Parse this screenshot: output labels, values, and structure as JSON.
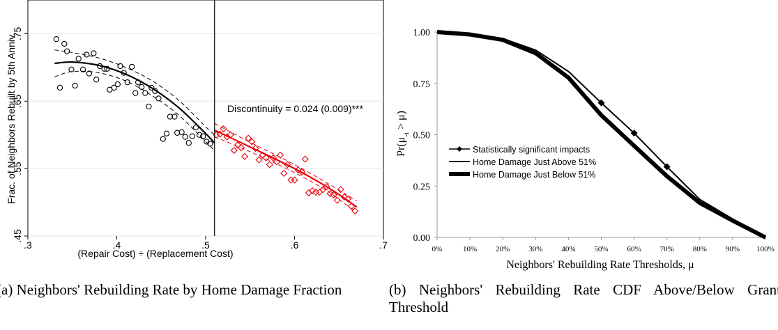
{
  "chart_data": [
    {
      "type": "scatter",
      "ylabel": "Frac. of Neighbors Rebuilt by 5th Anniv.",
      "xlabel": "(Repair Cost) ÷ (Replacement Cost)",
      "xlim": [
        0.3,
        0.7
      ],
      "ylim": [
        0.45,
        0.8
      ],
      "xticks": [
        ".3",
        ".4",
        ".5",
        ".6",
        ".7"
      ],
      "yticks": [
        ".45",
        ".55",
        ".65",
        ".75"
      ],
      "ytick_values": [
        0.45,
        0.55,
        0.65,
        0.75
      ],
      "threshold_x": 0.51,
      "annotation": "Discontinuity = 0.024  (0.009)***",
      "caption": "(a) Neighbors' Rebuilding Rate by Home Damage Fraction",
      "series": [
        {
          "color": "#000000",
          "marker": "circle",
          "points": [
            [
              0.332,
              0.742
            ],
            [
              0.336,
              0.67
            ],
            [
              0.341,
              0.735
            ],
            [
              0.344,
              0.724
            ],
            [
              0.349,
              0.697
            ],
            [
              0.353,
              0.673
            ],
            [
              0.357,
              0.713
            ],
            [
              0.362,
              0.697
            ],
            [
              0.366,
              0.719
            ],
            [
              0.369,
              0.691
            ],
            [
              0.374,
              0.721
            ],
            [
              0.377,
              0.682
            ],
            [
              0.381,
              0.702
            ],
            [
              0.386,
              0.698
            ],
            [
              0.389,
              0.698
            ],
            [
              0.392,
              0.667
            ],
            [
              0.397,
              0.67
            ],
            [
              0.401,
              0.675
            ],
            [
              0.404,
              0.702
            ],
            [
              0.408,
              0.692
            ],
            [
              0.412,
              0.678
            ],
            [
              0.417,
              0.701
            ],
            [
              0.421,
              0.662
            ],
            [
              0.424,
              0.678
            ],
            [
              0.428,
              0.671
            ],
            [
              0.432,
              0.662
            ],
            [
              0.436,
              0.642
            ],
            [
              0.439,
              0.67
            ],
            [
              0.443,
              0.665
            ],
            [
              0.447,
              0.654
            ],
            [
              0.452,
              0.594
            ],
            [
              0.456,
              0.602
            ],
            [
              0.46,
              0.627
            ],
            [
              0.465,
              0.627
            ],
            [
              0.468,
              0.603
            ],
            [
              0.473,
              0.604
            ],
            [
              0.477,
              0.597
            ],
            [
              0.481,
              0.588
            ],
            [
              0.485,
              0.598
            ],
            [
              0.489,
              0.611
            ],
            [
              0.493,
              0.6
            ],
            [
              0.497,
              0.598
            ],
            [
              0.501,
              0.59
            ],
            [
              0.505,
              0.587
            ]
          ],
          "fit": [
            [
              0.33,
              0.706
            ],
            [
              0.35,
              0.708
            ],
            [
              0.38,
              0.703
            ],
            [
              0.41,
              0.69
            ],
            [
              0.44,
              0.669
            ],
            [
              0.47,
              0.64
            ],
            [
              0.5,
              0.602
            ],
            [
              0.51,
              0.588
            ]
          ],
          "ci_upper": [
            [
              0.33,
              0.726
            ],
            [
              0.35,
              0.722
            ],
            [
              0.38,
              0.714
            ],
            [
              0.41,
              0.7
            ],
            [
              0.44,
              0.68
            ],
            [
              0.47,
              0.651
            ],
            [
              0.5,
              0.612
            ],
            [
              0.51,
              0.6
            ]
          ],
          "ci_lower": [
            [
              0.33,
              0.686
            ],
            [
              0.35,
              0.694
            ],
            [
              0.38,
              0.692
            ],
            [
              0.41,
              0.68
            ],
            [
              0.44,
              0.658
            ],
            [
              0.47,
              0.629
            ],
            [
              0.5,
              0.59
            ],
            [
              0.51,
              0.577
            ]
          ]
        },
        {
          "color": "#e8000b",
          "marker": "diamond",
          "points": [
            [
              0.512,
              0.6
            ],
            [
              0.516,
              0.601
            ],
            [
              0.52,
              0.609
            ],
            [
              0.524,
              0.597
            ],
            [
              0.528,
              0.6
            ],
            [
              0.532,
              0.577
            ],
            [
              0.536,
              0.585
            ],
            [
              0.54,
              0.581
            ],
            [
              0.544,
              0.568
            ],
            [
              0.548,
              0.595
            ],
            [
              0.552,
              0.59
            ],
            [
              0.556,
              0.58
            ],
            [
              0.56,
              0.563
            ],
            [
              0.564,
              0.57
            ],
            [
              0.568,
              0.566
            ],
            [
              0.572,
              0.556
            ],
            [
              0.576,
              0.566
            ],
            [
              0.58,
              0.56
            ],
            [
              0.584,
              0.57
            ],
            [
              0.588,
              0.543
            ],
            [
              0.592,
              0.556
            ],
            [
              0.596,
              0.533
            ],
            [
              0.6,
              0.533
            ],
            [
              0.604,
              0.548
            ],
            [
              0.608,
              0.545
            ],
            [
              0.612,
              0.564
            ],
            [
              0.616,
              0.514
            ],
            [
              0.62,
              0.517
            ],
            [
              0.624,
              0.515
            ],
            [
              0.628,
              0.515
            ],
            [
              0.632,
              0.519
            ],
            [
              0.636,
              0.523
            ],
            [
              0.64,
              0.513
            ],
            [
              0.644,
              0.511
            ],
            [
              0.648,
              0.503
            ],
            [
              0.652,
              0.519
            ],
            [
              0.656,
              0.508
            ],
            [
              0.66,
              0.505
            ],
            [
              0.664,
              0.494
            ],
            [
              0.668,
              0.487
            ]
          ],
          "fit": [
            [
              0.51,
              0.607
            ],
            [
              0.55,
              0.582
            ],
            [
              0.6,
              0.55
            ],
            [
              0.64,
              0.52
            ],
            [
              0.67,
              0.493
            ]
          ],
          "ci_upper": [
            [
              0.51,
              0.617
            ],
            [
              0.55,
              0.589
            ],
            [
              0.6,
              0.556
            ],
            [
              0.64,
              0.526
            ],
            [
              0.67,
              0.502
            ]
          ],
          "ci_lower": [
            [
              0.51,
              0.597
            ],
            [
              0.55,
              0.575
            ],
            [
              0.6,
              0.544
            ],
            [
              0.64,
              0.514
            ],
            [
              0.67,
              0.484
            ]
          ]
        }
      ]
    },
    {
      "type": "line",
      "ylabel": "Pr(μ-i > μ)",
      "ylabel_main": "Pr(μ",
      "ylabel_sub": "-i",
      "ylabel_end": " > μ)",
      "xlabel": "Neighbors' Rebuilding Rate Thresholds, μ",
      "x": [
        0,
        10,
        20,
        30,
        40,
        50,
        60,
        70,
        80,
        90,
        100
      ],
      "xticks": [
        "0%",
        "10%",
        "20%",
        "30%",
        "40%",
        "50%",
        "60%",
        "70%",
        "80%",
        "90%",
        "100%"
      ],
      "yticks": [
        "0.00",
        "0.25",
        "0.50",
        "0.75",
        "1.00"
      ],
      "ytick_values": [
        0,
        0.25,
        0.5,
        0.75,
        1.0
      ],
      "ylim": [
        0,
        1.0
      ],
      "legend_placement": "lower-left",
      "caption": "(b)  Neighbors'  Rebuilding  Rate  CDF Above/Below Grant Threshold",
      "series": [
        {
          "name": "Home Damage Just Above 51%",
          "values": [
            1.0,
            0.992,
            0.968,
            0.912,
            0.808,
            0.655,
            0.508,
            0.344,
            0.185,
            0.09,
            0.0
          ],
          "width": 2
        },
        {
          "name": "Home Damage Just Below 51%",
          "values": [
            1.0,
            0.988,
            0.962,
            0.897,
            0.778,
            0.595,
            0.446,
            0.298,
            0.168,
            0.082,
            0.0
          ],
          "width": 6
        }
      ],
      "significant": {
        "name": "Statistically significant impacts",
        "x": [
          50,
          60,
          70
        ],
        "values": [
          0.655,
          0.508,
          0.344
        ]
      }
    }
  ]
}
